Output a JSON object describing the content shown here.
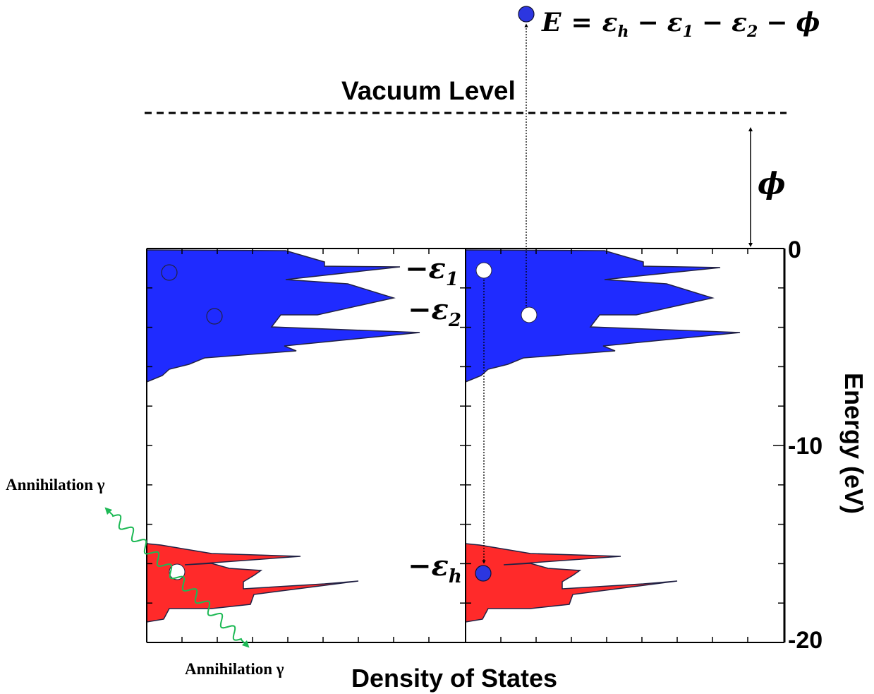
{
  "vacuum_level_label": "Vacuum Level",
  "phi_label": "ϕ",
  "energy_equation": {
    "E": "E",
    "eq": "=",
    "eps": "ε",
    "h": "h",
    "minus": "−",
    "one": "1",
    "two": "2",
    "phi": "ϕ"
  },
  "level_labels": {
    "eps1": {
      "minus": "−",
      "eps": "ε",
      "sub": "1"
    },
    "eps2": {
      "minus": "−",
      "eps": "ε",
      "sub": "2"
    },
    "epsh": {
      "minus": "−",
      "eps": "ε",
      "sub": "h"
    }
  },
  "annihilation_top": "Annihilation γ",
  "annihilation_bottom": "Annihilation γ",
  "x_axis_label": "Density of States",
  "y_axis_label": "Energy (eV)",
  "y_ticks": [
    "0",
    "-10",
    "-20"
  ],
  "y_range": [
    -20,
    0
  ],
  "colors": {
    "valence": "#1f2bff",
    "core": "#ff2a2a",
    "photon": "#1db955",
    "electron": "#2c36e0",
    "hole": "#ffffff",
    "outline": "#222244"
  },
  "icons": {
    "emitted_electron": "electron-dot-icon",
    "photon": "wavy-arrow-icon"
  }
}
